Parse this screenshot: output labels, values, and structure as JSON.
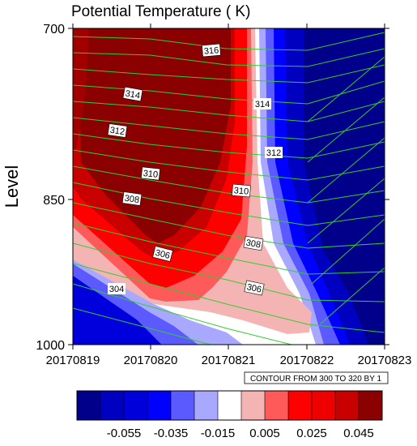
{
  "chart_data": {
    "type": "heatmap",
    "title": "Potential Temperature ( K)",
    "ylabel": "Level",
    "xlabel": "",
    "x_ticks": [
      "20170819",
      "20170820",
      "20170821",
      "20170822",
      "20170823"
    ],
    "y_ticks": [
      "700",
      "850",
      "1000"
    ],
    "y_axis_reversed": true,
    "ylim": [
      1000,
      700
    ],
    "contour_note": "CONTOUR FROM 300 TO 320 BY 1",
    "colorbar": {
      "tick_labels": [
        "-0.055",
        "-0.035",
        "-0.015",
        "0.005",
        "0.025",
        "0.045"
      ],
      "colors": [
        "#00008b",
        "#0000c0",
        "#0000dc",
        "#0000ff",
        "#5a5aff",
        "#a8a8ff",
        "#ffffff",
        "#f5b4b4",
        "#ff5a5a",
        "#ff0000",
        "#ee0000",
        "#c80000",
        "#8b0000"
      ]
    },
    "contour_labels": [
      {
        "value": "316",
        "x": "20170821 -6h",
        "y": 715
      },
      {
        "value": "314",
        "x": "20170820 -12h",
        "y": 770
      },
      {
        "value": "314",
        "x": "20170821 +18h",
        "y": 770
      },
      {
        "value": "312",
        "x": "20170820 -14h",
        "y": 805
      },
      {
        "value": "312",
        "x": "20170821 +21h",
        "y": 810
      },
      {
        "value": "310",
        "x": "20170820 +4h",
        "y": 835
      },
      {
        "value": "310",
        "x": "20170821 +9h",
        "y": 845
      },
      {
        "value": "308",
        "x": "20170820 +3h",
        "y": 850
      },
      {
        "value": "308",
        "x": "20170821 +17h",
        "y": 880
      },
      {
        "value": "306",
        "x": "20170820 +11h",
        "y": 900
      },
      {
        "value": "306",
        "x": "20170821 +17h",
        "y": 925
      },
      {
        "value": "304",
        "x": "20170819 +22h",
        "y": 928
      }
    ]
  }
}
